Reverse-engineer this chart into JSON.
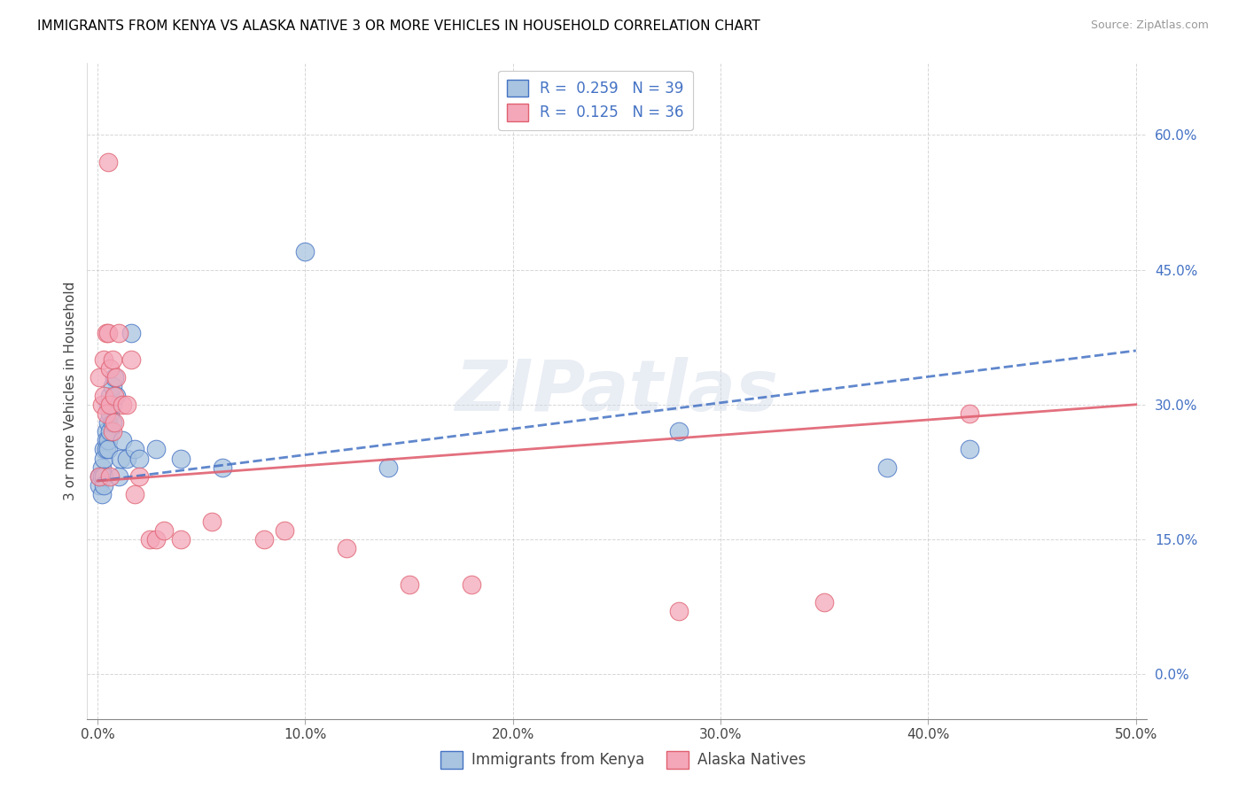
{
  "title": "IMMIGRANTS FROM KENYA VS ALASKA NATIVE 3 OR MORE VEHICLES IN HOUSEHOLD CORRELATION CHART",
  "source": "Source: ZipAtlas.com",
  "ylabel": "3 or more Vehicles in Household",
  "legend_label_blue": "Immigrants from Kenya",
  "legend_label_pink": "Alaska Natives",
  "R_blue": 0.259,
  "N_blue": 39,
  "R_pink": 0.125,
  "N_pink": 36,
  "xlim": [
    -0.005,
    0.505
  ],
  "ylim": [
    -0.05,
    0.68
  ],
  "xticks": [
    0.0,
    0.1,
    0.2,
    0.3,
    0.4,
    0.5
  ],
  "xtick_labels": [
    "0.0%",
    "10.0%",
    "20.0%",
    "30.0%",
    "40.0%",
    "50.0%"
  ],
  "yticks": [
    0.0,
    0.15,
    0.3,
    0.45,
    0.6
  ],
  "ytick_labels": [
    "0.0%",
    "15.0%",
    "30.0%",
    "45.0%",
    "60.0%"
  ],
  "color_blue": "#a8c4e0",
  "color_pink": "#f4a7b9",
  "line_color_blue": "#4472c4",
  "line_color_pink": "#e06070",
  "watermark_text": "ZIPatlas",
  "blue_x": [
    0.001,
    0.001,
    0.002,
    0.002,
    0.002,
    0.003,
    0.003,
    0.003,
    0.003,
    0.004,
    0.004,
    0.004,
    0.005,
    0.005,
    0.005,
    0.005,
    0.006,
    0.006,
    0.006,
    0.007,
    0.007,
    0.007,
    0.008,
    0.009,
    0.01,
    0.011,
    0.012,
    0.014,
    0.016,
    0.018,
    0.02,
    0.028,
    0.04,
    0.06,
    0.1,
    0.14,
    0.28,
    0.38,
    0.42
  ],
  "blue_y": [
    0.22,
    0.21,
    0.23,
    0.22,
    0.2,
    0.25,
    0.24,
    0.22,
    0.21,
    0.27,
    0.26,
    0.25,
    0.3,
    0.28,
    0.26,
    0.25,
    0.31,
    0.29,
    0.27,
    0.32,
    0.3,
    0.28,
    0.33,
    0.31,
    0.22,
    0.24,
    0.26,
    0.24,
    0.38,
    0.25,
    0.24,
    0.25,
    0.24,
    0.23,
    0.47,
    0.23,
    0.27,
    0.23,
    0.25
  ],
  "pink_x": [
    0.001,
    0.001,
    0.002,
    0.003,
    0.003,
    0.004,
    0.004,
    0.005,
    0.005,
    0.006,
    0.006,
    0.006,
    0.007,
    0.007,
    0.008,
    0.008,
    0.009,
    0.01,
    0.012,
    0.014,
    0.016,
    0.018,
    0.02,
    0.025,
    0.028,
    0.032,
    0.04,
    0.055,
    0.08,
    0.09,
    0.12,
    0.15,
    0.18,
    0.28,
    0.35,
    0.42
  ],
  "pink_y": [
    0.22,
    0.33,
    0.3,
    0.35,
    0.31,
    0.38,
    0.29,
    0.57,
    0.38,
    0.34,
    0.3,
    0.22,
    0.35,
    0.27,
    0.31,
    0.28,
    0.33,
    0.38,
    0.3,
    0.3,
    0.35,
    0.2,
    0.22,
    0.15,
    0.15,
    0.16,
    0.15,
    0.17,
    0.15,
    0.16,
    0.14,
    0.1,
    0.1,
    0.07,
    0.08,
    0.29
  ],
  "trendline_blue_x0": 0.0,
  "trendline_blue_y0": 0.215,
  "trendline_blue_x1": 0.5,
  "trendline_blue_y1": 0.36,
  "trendline_pink_x0": 0.0,
  "trendline_pink_y0": 0.215,
  "trendline_pink_x1": 0.5,
  "trendline_pink_y1": 0.3
}
